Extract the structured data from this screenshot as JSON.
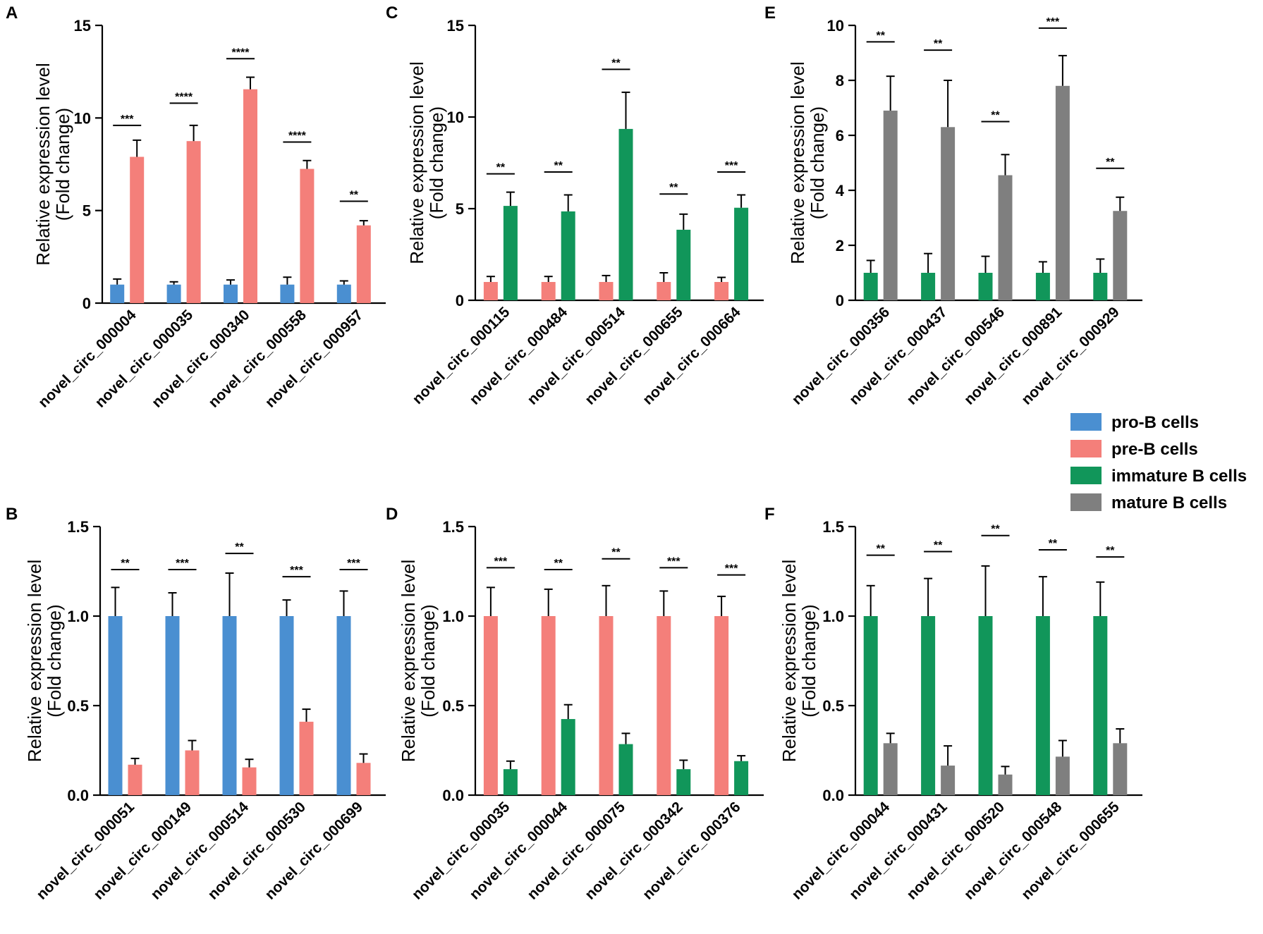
{
  "legend": [
    {
      "label": "pro-B cells",
      "color": "#4a8fd1"
    },
    {
      "label": "pre-B cells",
      "color": "#f47f7a"
    },
    {
      "label": "immature B cells",
      "color": "#11965a"
    },
    {
      "label": "mature B cells",
      "color": "#7f7f7f"
    }
  ],
  "chart_data": [
    {
      "panel": "A",
      "type": "bar",
      "ylabel_line1": "Relative expression level",
      "ylabel_line2": "(Fold change)",
      "ylim": [
        0,
        15
      ],
      "yticks": [
        0,
        5,
        10,
        15
      ],
      "ytick_labels": [
        "0",
        "5",
        "10",
        "15"
      ],
      "categories": [
        "novel_circ_000004",
        "novel_circ_000035",
        "novel_circ_000340",
        "novel_circ_000558",
        "novel_circ_000957"
      ],
      "series": [
        {
          "name": "pro-B cells",
          "color": "#4a8fd1",
          "values": [
            1.0,
            1.0,
            1.0,
            1.0,
            1.0
          ],
          "errors": [
            0.3,
            0.15,
            0.25,
            0.4,
            0.2
          ]
        },
        {
          "name": "pre-B cells",
          "color": "#f47f7a",
          "values": [
            7.9,
            8.75,
            11.55,
            7.25,
            4.2
          ],
          "errors": [
            0.9,
            0.85,
            0.65,
            0.45,
            0.25
          ]
        }
      ],
      "significance": [
        "***",
        "****",
        "****",
        "****",
        "**"
      ],
      "sig_levels": [
        9.6,
        10.8,
        13.2,
        8.7,
        5.5
      ]
    },
    {
      "panel": "B",
      "type": "bar",
      "ylabel_line1": "Relative expression level",
      "ylabel_line2": "(Fold change)",
      "ylim": [
        0,
        1.5
      ],
      "yticks": [
        0,
        0.5,
        1.0,
        1.5
      ],
      "ytick_labels": [
        "0.0",
        "0.5",
        "1.0",
        "1.5"
      ],
      "categories": [
        "novel_circ_000051",
        "novel_circ_000149",
        "novel_circ_000514",
        "novel_circ_000530",
        "novel_circ_000699"
      ],
      "series": [
        {
          "name": "pro-B cells",
          "color": "#4a8fd1",
          "values": [
            1.0,
            1.0,
            1.0,
            1.0,
            1.0
          ],
          "errors": [
            0.16,
            0.13,
            0.24,
            0.09,
            0.14
          ]
        },
        {
          "name": "pre-B cells",
          "color": "#f47f7a",
          "values": [
            0.17,
            0.25,
            0.155,
            0.41,
            0.18
          ],
          "errors": [
            0.035,
            0.055,
            0.045,
            0.07,
            0.05
          ]
        }
      ],
      "significance": [
        "**",
        "***",
        "**",
        "***",
        "***"
      ],
      "sig_levels": [
        1.26,
        1.26,
        1.35,
        1.22,
        1.26
      ]
    },
    {
      "panel": "C",
      "type": "bar",
      "ylabel_line1": "Relative expression level",
      "ylabel_line2": "(Fold change)",
      "ylim": [
        0,
        15
      ],
      "yticks": [
        0,
        5,
        10,
        15
      ],
      "ytick_labels": [
        "0",
        "5",
        "10",
        "15"
      ],
      "categories": [
        "novel_circ_000115",
        "novel_circ_000484",
        "novel_circ_000514",
        "novel_circ_000655",
        "novel_circ_000664"
      ],
      "series": [
        {
          "name": "pre-B cells",
          "color": "#f47f7a",
          "values": [
            1.0,
            1.0,
            1.0,
            1.0,
            1.0
          ],
          "errors": [
            0.3,
            0.3,
            0.35,
            0.5,
            0.25
          ]
        },
        {
          "name": "immature B cells",
          "color": "#11965a",
          "values": [
            5.15,
            4.85,
            9.35,
            3.85,
            5.05
          ],
          "errors": [
            0.75,
            0.9,
            2.0,
            0.85,
            0.7
          ]
        }
      ],
      "significance": [
        "**",
        "**",
        "**",
        "**",
        "***"
      ],
      "sig_levels": [
        6.9,
        7.0,
        12.6,
        5.8,
        7.0
      ]
    },
    {
      "panel": "D",
      "type": "bar",
      "ylabel_line1": "Relative expression level",
      "ylabel_line2": "(Fold change)",
      "ylim": [
        0,
        1.5
      ],
      "yticks": [
        0,
        0.5,
        1.0,
        1.5
      ],
      "ytick_labels": [
        "0.0",
        "0.5",
        "1.0",
        "1.5"
      ],
      "categories": [
        "novel_circ_000035",
        "novel_circ_000044",
        "novel_circ_000075",
        "novel_circ_000342",
        "novel_circ_000376"
      ],
      "series": [
        {
          "name": "pre-B cells",
          "color": "#f47f7a",
          "values": [
            1.0,
            1.0,
            1.0,
            1.0,
            1.0
          ],
          "errors": [
            0.16,
            0.15,
            0.17,
            0.14,
            0.11
          ]
        },
        {
          "name": "immature B cells",
          "color": "#11965a",
          "values": [
            0.145,
            0.425,
            0.285,
            0.145,
            0.19
          ],
          "errors": [
            0.045,
            0.08,
            0.06,
            0.05,
            0.03
          ]
        }
      ],
      "significance": [
        "***",
        "**",
        "**",
        "***",
        "***"
      ],
      "sig_levels": [
        1.27,
        1.26,
        1.32,
        1.27,
        1.23
      ]
    },
    {
      "panel": "E",
      "type": "bar",
      "ylabel_line1": "Relative expression level",
      "ylabel_line2": "(Fold change)",
      "ylim": [
        0,
        10
      ],
      "yticks": [
        0,
        2,
        4,
        6,
        8,
        10
      ],
      "ytick_labels": [
        "0",
        "2",
        "4",
        "6",
        "8",
        "10"
      ],
      "categories": [
        "novel_circ_000356",
        "novel_circ_000437",
        "novel_circ_000546",
        "novel_circ_000891",
        "novel_circ_000929"
      ],
      "series": [
        {
          "name": "immature B cells",
          "color": "#11965a",
          "values": [
            1.0,
            1.0,
            1.0,
            1.0,
            1.0
          ],
          "errors": [
            0.45,
            0.7,
            0.6,
            0.4,
            0.5
          ]
        },
        {
          "name": "mature B cells",
          "color": "#7f7f7f",
          "values": [
            6.9,
            6.3,
            4.55,
            7.8,
            3.25
          ],
          "errors": [
            1.25,
            1.7,
            0.75,
            1.1,
            0.5
          ]
        }
      ],
      "significance": [
        "**",
        "**",
        "**",
        "***",
        "**"
      ],
      "sig_levels": [
        9.4,
        9.1,
        6.5,
        9.9,
        4.8
      ]
    },
    {
      "panel": "F",
      "type": "bar",
      "ylabel_line1": "Relative expression level",
      "ylabel_line2": "(Fold change)",
      "ylim": [
        0,
        1.5
      ],
      "yticks": [
        0,
        0.5,
        1.0,
        1.5
      ],
      "ytick_labels": [
        "0.0",
        "0.5",
        "1.0",
        "1.5"
      ],
      "categories": [
        "novel_circ_000044",
        "novel_circ_000431",
        "novel_circ_000520",
        "novel_circ_000548",
        "novel_circ_000655"
      ],
      "series": [
        {
          "name": "immature B cells",
          "color": "#11965a",
          "values": [
            1.0,
            1.0,
            1.0,
            1.0,
            1.0
          ],
          "errors": [
            0.17,
            0.21,
            0.28,
            0.22,
            0.19
          ]
        },
        {
          "name": "mature B cells",
          "color": "#7f7f7f",
          "values": [
            0.29,
            0.165,
            0.115,
            0.215,
            0.29
          ],
          "errors": [
            0.055,
            0.11,
            0.045,
            0.09,
            0.08
          ]
        }
      ],
      "significance": [
        "**",
        "**",
        "**",
        "**",
        "**"
      ],
      "sig_levels": [
        1.34,
        1.36,
        1.45,
        1.37,
        1.33
      ]
    }
  ]
}
